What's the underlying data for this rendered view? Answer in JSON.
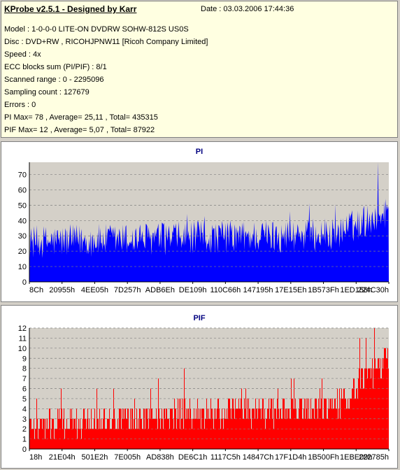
{
  "header": {
    "title": "KProbe v2.5.1 - Designed by Karr",
    "date": "Date : 03.03.2006 17:44:36"
  },
  "info_lines": [
    "Model : 1-0-0-0 LITE-ON DVDRW SOHW-812S  US0S",
    "Disc : DVD+RW , RICOHJPNW11 [Ricoh Company Limited]",
    "Speed : 4x",
    "ECC blocks sum (PI/PIF) : 8/1",
    "Scanned range : 0 - 2295096",
    "Sampling count : 127679",
    "Errors : 0",
    "PI Max= 78 , Average= 25,11 , Total= 435315",
    "PIF Max= 12 , Average= 5,07 , Total= 87922"
  ],
  "colors": {
    "pi_fill": "#0000ff",
    "pif_fill": "#ff0000",
    "title_blue": "#000080",
    "info_bg": "#ffffe1",
    "plot_bg": "#d4d0c8"
  },
  "chart_data": [
    {
      "type": "area",
      "title": "PI",
      "ylim": [
        0,
        78
      ],
      "yticks": [
        0,
        10,
        20,
        30,
        40,
        50,
        60,
        70
      ],
      "xticks": [
        "8Ch",
        "20955h",
        "4EE05h",
        "7D257h",
        "ADB6Eh",
        "DE109h",
        "110C66h",
        "147195h",
        "17E15Eh",
        "1B573Fh",
        "1ED158h",
        "224C30h"
      ],
      "grid": "horizontal dashed",
      "max": 78,
      "average": 25.11
    },
    {
      "type": "bar",
      "title": "PIF",
      "ylim": [
        0,
        12
      ],
      "yticks": [
        0,
        1,
        2,
        3,
        4,
        5,
        6,
        7,
        8,
        9,
        10,
        11,
        12
      ],
      "xticks": [
        "18h",
        "21E04h",
        "501E2h",
        "7E005h",
        "AD838h",
        "DE6C1h",
        "1117C5h",
        "14847Ch",
        "17F1D4h",
        "1B500Fh",
        "1EBE09h",
        "222785h"
      ],
      "grid": "horizontal dashed",
      "max": 12,
      "average": 5.07
    }
  ]
}
